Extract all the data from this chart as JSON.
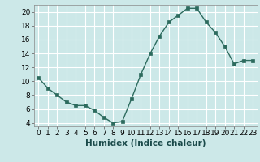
{
  "x": [
    0,
    1,
    2,
    3,
    4,
    5,
    6,
    7,
    8,
    9,
    10,
    11,
    12,
    13,
    14,
    15,
    16,
    17,
    18,
    19,
    20,
    21,
    22,
    23
  ],
  "y": [
    10.5,
    9.0,
    8.0,
    7.0,
    6.5,
    6.5,
    5.8,
    4.8,
    4.0,
    4.2,
    7.5,
    11.0,
    14.0,
    16.5,
    18.5,
    19.5,
    20.5,
    20.5,
    18.5,
    17.0,
    15.0,
    12.5,
    13.0,
    13.0
  ],
  "line_color": "#2d6b5e",
  "marker_color": "#2d6b5e",
  "bg_color": "#cce8e8",
  "grid_color": "#ffffff",
  "xlabel": "Humidex (Indice chaleur)",
  "ylim": [
    3.5,
    21
  ],
  "xlim": [
    -0.5,
    23.5
  ],
  "yticks": [
    4,
    6,
    8,
    10,
    12,
    14,
    16,
    18,
    20
  ],
  "xticks": [
    0,
    1,
    2,
    3,
    4,
    5,
    6,
    7,
    8,
    9,
    10,
    11,
    12,
    13,
    14,
    15,
    16,
    17,
    18,
    19,
    20,
    21,
    22,
    23
  ],
  "xlabel_fontsize": 7.5,
  "tick_fontsize": 6.5
}
